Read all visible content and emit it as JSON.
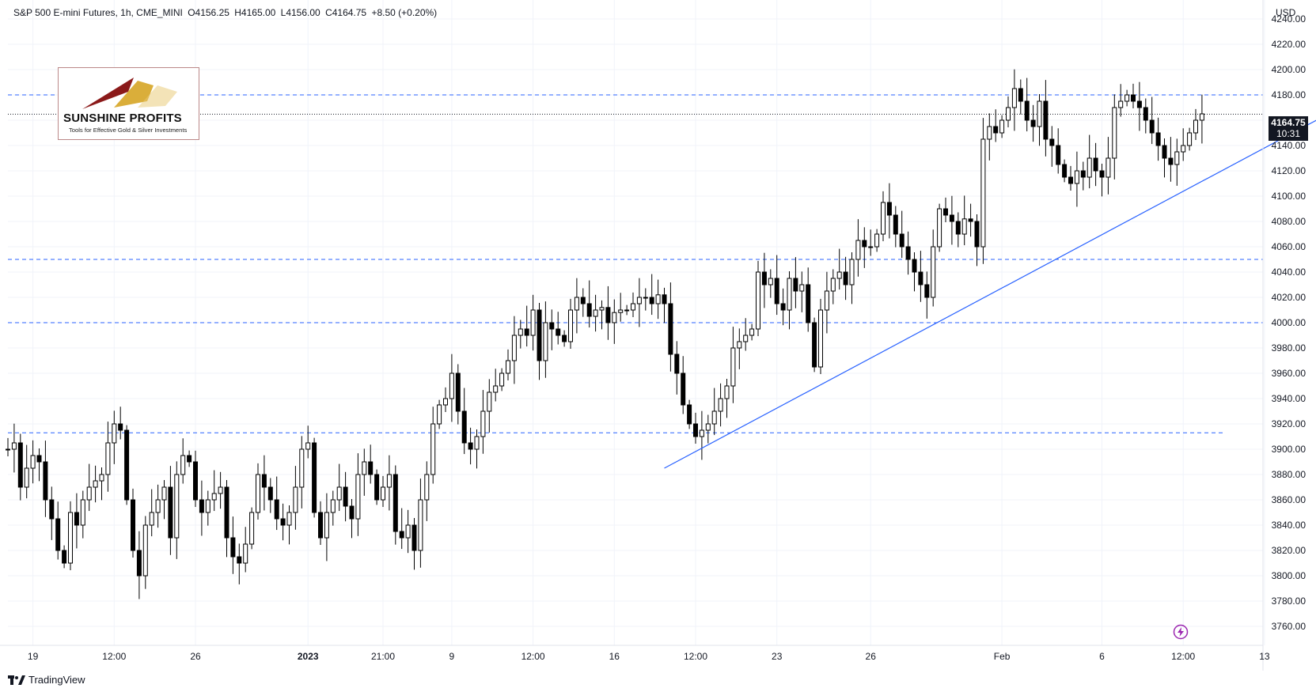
{
  "header": {
    "symbol": "S&P 500 E-mini Futures, 1h, CME_MINI",
    "open": "O4156.25",
    "high": "H4165.00",
    "low": "L4156.00",
    "close": "C4164.75",
    "change": "+8.50 (+0.20%)"
  },
  "currency": "USD",
  "last_price": {
    "price": "4164.75",
    "countdown": "10:31"
  },
  "logo": {
    "name": "SUNSHINE PROFITS",
    "tagline": "Tools for Effective Gold & Silver Investments"
  },
  "footer": {
    "brand": "TradingView"
  },
  "colors": {
    "candle": "#000000",
    "dashed_line": "#2962ff",
    "trendline": "#2962ff",
    "bolt": "#9c27b0"
  },
  "chart_data": {
    "type": "line",
    "title": "S&P 500 E-mini Futures, 1h, CME_MINI",
    "ylim": [
      3745,
      4255
    ],
    "y_ticks": [
      3760,
      3780,
      3800,
      3820,
      3840,
      3860,
      3880,
      3900,
      3920,
      3940,
      3960,
      3980,
      4000,
      4020,
      4040,
      4060,
      4080,
      4100,
      4120,
      4140,
      4160,
      4180,
      4200,
      4220,
      4240
    ],
    "x_ticks": [
      {
        "label": "19",
        "bold": false,
        "i": 4
      },
      {
        "label": "12:00",
        "bold": false,
        "i": 17
      },
      {
        "label": "26",
        "bold": false,
        "i": 30
      },
      {
        "label": "2023",
        "bold": true,
        "i": 48
      },
      {
        "label": "21:00",
        "bold": false,
        "i": 60
      },
      {
        "label": "9",
        "bold": false,
        "i": 71
      },
      {
        "label": "12:00",
        "bold": false,
        "i": 84
      },
      {
        "label": "16",
        "bold": false,
        "i": 97
      },
      {
        "label": "12:00",
        "bold": false,
        "i": 110
      },
      {
        "label": "23",
        "bold": false,
        "i": 123
      },
      {
        "label": "26",
        "bold": false,
        "i": 138
      },
      {
        "label": "Feb",
        "bold": false,
        "i": 159
      },
      {
        "label": "6",
        "bold": false,
        "i": 175
      },
      {
        "label": "12:00",
        "bold": false,
        "i": 188
      },
      {
        "label": "13",
        "bold": false,
        "i": 201
      }
    ],
    "series": [
      {
        "close": [
          3900,
          3905,
          3870,
          3885,
          3895,
          3890,
          3860,
          3845,
          3820,
          3810,
          3850,
          3840,
          3860,
          3870,
          3875,
          3880,
          3905,
          3920,
          3915,
          3860,
          3820,
          3800,
          3840,
          3850,
          3860,
          3870,
          3830,
          3880,
          3895,
          3890,
          3860,
          3850,
          3860,
          3865,
          3870,
          3830,
          3815,
          3810,
          3825,
          3850,
          3880,
          3870,
          3860,
          3845,
          3840,
          3850,
          3870,
          3900,
          3905,
          3850,
          3830,
          3850,
          3860,
          3870,
          3855,
          3845,
          3880,
          3890,
          3880,
          3860,
          3870,
          3880,
          3835,
          3830,
          3840,
          3820,
          3860,
          3880,
          3920,
          3935,
          3940,
          3960,
          3930,
          3905,
          3900,
          3910,
          3930,
          3945,
          3950,
          3960,
          3970,
          3990,
          3995,
          3990,
          4010,
          3970,
          4000,
          3995,
          3990,
          3985,
          4010,
          4020,
          4015,
          4005,
          4010,
          4012,
          4000,
          4008,
          4010,
          4010,
          4015,
          4020,
          4020,
          4015,
          4022,
          4015,
          3975,
          3960,
          3935,
          3920,
          3910,
          3915,
          3920,
          3930,
          3940,
          3950,
          3980,
          3985,
          3990,
          3995,
          4040,
          4030,
          4035,
          4015,
          4010,
          4035,
          4025,
          4030,
          4000,
          3965,
          4010,
          4025,
          4035,
          4040,
          4030,
          4050,
          4065,
          4060,
          4060,
          4070,
          4095,
          4085,
          4070,
          4060,
          4050,
          4040,
          4030,
          4020,
          4060,
          4090,
          4085,
          4080,
          4070,
          4082,
          4080,
          4060,
          4145,
          4155,
          4150,
          4160,
          4170,
          4185,
          4175,
          4160,
          4155,
          4175,
          4145,
          4140,
          4125,
          4115,
          4110,
          4120,
          4115,
          4130,
          4120,
          4115,
          4130,
          4170,
          4175,
          4180,
          4175,
          4170,
          4160,
          4150,
          4140,
          4130,
          4125,
          4135,
          4140,
          4150,
          4160,
          4165
        ]
      }
    ],
    "annotations": {
      "horizontal_levels": [
        4180,
        4050,
        4000,
        3913
      ],
      "current_price_line": 4164.75,
      "trendline": {
        "from": {
          "i": 105,
          "price": 3885
        },
        "to": {
          "i": 215,
          "price": 4175
        }
      }
    },
    "grid": true,
    "legend": "none"
  }
}
